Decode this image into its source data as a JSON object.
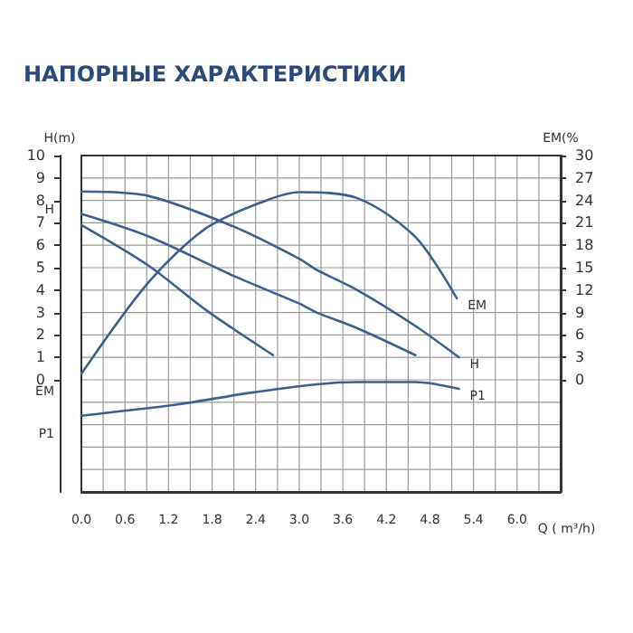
{
  "chart_data": {
    "type": "line",
    "title": "НАПОРНЫЕ ХАРАКТЕРИСТИКИ",
    "xlabel": "Q ( m³/h)",
    "ylabel": "H(m)",
    "y2label": "EM(%",
    "xlim": [
      0,
      6.6
    ],
    "xticks": [
      {
        "value": 0,
        "label": "0.0"
      },
      {
        "value": 0.6,
        "label": "0.6"
      },
      {
        "value": 1.2,
        "label": "1.2"
      },
      {
        "value": 1.8,
        "label": "1.8"
      },
      {
        "value": 2.4,
        "label": "2.4"
      },
      {
        "value": 3,
        "label": "3.0"
      },
      {
        "value": 3.6,
        "label": "3.6"
      },
      {
        "value": 4.2,
        "label": "4.2"
      },
      {
        "value": 4.8,
        "label": "4.8"
      },
      {
        "value": 5.4,
        "label": "5.4"
      },
      {
        "value": 6,
        "label": "6.0"
      }
    ],
    "ylim": [
      -5,
      10
    ],
    "yticks": [
      0,
      1,
      2,
      3,
      4,
      5,
      6,
      7,
      8,
      9,
      10
    ],
    "y2lim": [
      -15,
      30
    ],
    "y2ticks": [
      0,
      3,
      6,
      9,
      12,
      15,
      18,
      21,
      24,
      27,
      30
    ],
    "grid": true,
    "legend": false,
    "marker": "none",
    "line_style": "solid",
    "series": [
      {
        "name": "H",
        "color": "#3d5f8f",
        "x": [
          0,
          0.92,
          2.12,
          3.0,
          3.24,
          3.8,
          4.6,
          5.2
        ],
        "values": [
          8.4,
          8.2,
          6.8,
          5.4,
          4.9,
          4.0,
          2.4,
          1.0
        ]
      },
      {
        "color": "#3d5f8f",
        "x": [
          0,
          0.92,
          2.12,
          3.0,
          3.24,
          3.8,
          4.6
        ],
        "values": [
          7.4,
          6.4,
          4.6,
          3.4,
          3.0,
          2.3,
          1.1
        ]
      },
      {
        "color": "#3d5f8f",
        "x": [
          0,
          0.92,
          1.72,
          2.64
        ],
        "values": [
          6.9,
          5.1,
          3.1,
          1.1
        ]
      },
      {
        "name": "EM",
        "axis": "y2",
        "color": "#3d5f8f",
        "x": [
          0,
          0.92,
          1.72,
          2.52,
          3.0,
          3.8,
          4.6,
          5.17
        ],
        "values": [
          0.8,
          13,
          20.3,
          23.9,
          25.1,
          24.3,
          19.1,
          10.9
        ]
      },
      {
        "name": "P1",
        "color": "#3d5f8f",
        "x": [
          0,
          1.32,
          2.28,
          3.24,
          3.8,
          4.6,
          5.2
        ],
        "values": [
          -1.6,
          -1.1,
          -0.6,
          -0.2,
          -0.1,
          -0.1,
          -0.4
        ]
      }
    ],
    "annotations": [
      "H",
      "EM",
      "P1"
    ]
  }
}
